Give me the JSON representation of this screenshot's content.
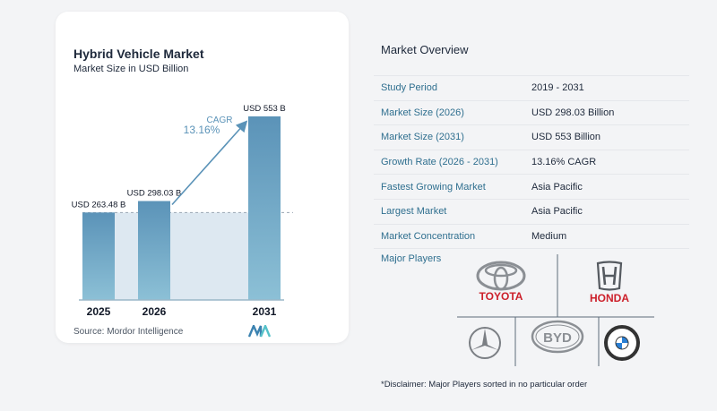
{
  "chart": {
    "title": "Hybrid Vehicle Market",
    "subtitle": "Market Size in USD Billion",
    "source": "Source:  Mordor Intelligence",
    "cagr_label": "CAGR",
    "cagr_value": "13.16%"
  },
  "chart_data": {
    "type": "bar",
    "title": "Hybrid Vehicle Market",
    "subtitle": "Market Size in USD Billion",
    "categories": [
      "2025",
      "2026",
      "2031"
    ],
    "values": [
      263.48,
      298.03,
      553
    ],
    "value_labels": [
      "USD 263.48 B",
      "USD 298.03 B",
      "USD 553 B"
    ],
    "ylim": [
      0,
      553
    ],
    "grid": false,
    "annotation": "CAGR 13.16%",
    "colors": {
      "bar_top": "#5b93b8",
      "bar_bottom": "#8cc0d6",
      "baseline": "#9ab7c8",
      "arrow": "#5b93b8"
    }
  },
  "overview": {
    "title": "Market Overview",
    "rows": [
      {
        "label": "Study Period",
        "value": "2019 - 2031"
      },
      {
        "label": "Market Size (2026)",
        "value": "USD 298.03 Billion"
      },
      {
        "label": "Market Size (2031)",
        "value": "USD 553 Billion"
      },
      {
        "label": "Growth Rate (2026 - 2031)",
        "value": "13.16% CAGR"
      },
      {
        "label": "Fastest Growing Market",
        "value": "Asia Pacific"
      },
      {
        "label": "Largest Market",
        "value": "Asia Pacific"
      },
      {
        "label": "Market Concentration",
        "value": "Medium"
      }
    ]
  },
  "players": {
    "title": "Major Players",
    "toyota": "TOYOTA",
    "honda": "HONDA",
    "byd": "BYD",
    "bmw": "BMW",
    "disclaimer": "*Disclaimer: Major Players sorted in no particular order"
  }
}
